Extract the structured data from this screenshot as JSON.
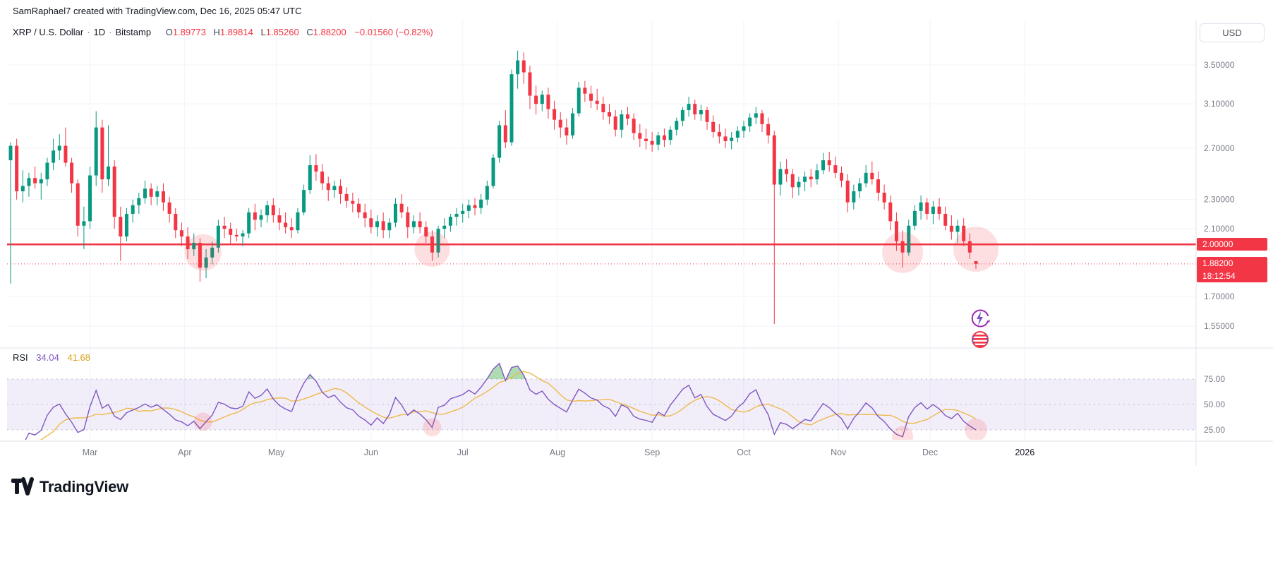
{
  "header": {
    "attribution": "SamRaphael7 created with TradingView.com, Dec 16, 2025 05:47 UTC"
  },
  "legend": {
    "symbol": "XRP / U.S. Dollar",
    "separator": "·",
    "interval": "1D",
    "exchange": "Bitstamp",
    "ohlc": {
      "open_label": "O",
      "open": "1.89773",
      "high_label": "H",
      "high": "1.89814",
      "low_label": "L",
      "low": "1.85260",
      "close_label": "C",
      "close": "1.88200",
      "change": "−0.01560 (−0.82%)"
    }
  },
  "toolbar": {
    "currency": "USD"
  },
  "price_axis": {
    "labels": [
      {
        "text": "3.50000",
        "value": 3.5
      },
      {
        "text": "3.10000",
        "value": 3.1
      },
      {
        "text": "2.70000",
        "value": 2.7
      },
      {
        "text": "2.30000",
        "value": 2.3
      },
      {
        "text": "2.10000",
        "value": 2.1
      },
      {
        "text": "1.70000",
        "value": 1.7
      },
      {
        "text": "1.55000",
        "value": 1.55
      }
    ],
    "line_badge": {
      "text": "2.00000",
      "value": 2.0
    },
    "last_price_badge": {
      "text": "1.88200",
      "value": 1.882,
      "countdown": "18:12:54"
    }
  },
  "time_axis": {
    "labels": [
      {
        "text": "Mar",
        "day": 26
      },
      {
        "text": "Apr",
        "day": 57
      },
      {
        "text": "May",
        "day": 87
      },
      {
        "text": "Jun",
        "day": 118
      },
      {
        "text": "Jul",
        "day": 148
      },
      {
        "text": "Aug",
        "day": 179
      },
      {
        "text": "Sep",
        "day": 210
      },
      {
        "text": "Oct",
        "day": 240
      },
      {
        "text": "Nov",
        "day": 271
      },
      {
        "text": "Dec",
        "day": 301
      },
      {
        "text": "2026",
        "day": 332,
        "year": true
      }
    ]
  },
  "rsi_panel": {
    "label": "RSI",
    "value": "34.04",
    "ma_value": "41.68",
    "axis_labels": [
      {
        "text": "75.00",
        "value": 75
      },
      {
        "text": "50.00",
        "value": 50
      },
      {
        "text": "25.00",
        "value": 25
      }
    ],
    "band": {
      "upper": 75,
      "middle": 50,
      "lower": 25
    }
  },
  "branding": {
    "logo_text": "TradingView"
  },
  "colors": {
    "up": "#089981",
    "down": "#f23645",
    "accent_red": "#f23645",
    "rsi_line": "#7e57c2",
    "rsi_ma_line": "#edb94d",
    "band_fill": "rgba(126,87,194,0.10)",
    "band_dash": "#b7b9c4",
    "overbought_fill": "rgba(76,175,80,0.45)",
    "highlight": "rgba(242,54,69,0.16)",
    "axis_text": "#787b86",
    "text": "#131722",
    "grid": "#f0f3fa",
    "separator": "#e0e3eb"
  },
  "chart_data": {
    "type": "candlestick+rsi",
    "symbol": "XRP/USD",
    "exchange": "Bitstamp",
    "timeframe_display": "1D",
    "price_scale": "log",
    "ylim": [
      1.5,
      3.8
    ],
    "start_date": "2025-02-03",
    "end_date": "2025-12-16",
    "days_per_candle": 2,
    "horizontal_line_price": 2.0,
    "last_price": 1.882,
    "candles_ohlc": [
      [
        2.6,
        2.75,
        1.77,
        2.72
      ],
      [
        2.72,
        2.78,
        2.3,
        2.36
      ],
      [
        2.36,
        2.52,
        2.28,
        2.4
      ],
      [
        2.4,
        2.5,
        2.32,
        2.46
      ],
      [
        2.46,
        2.55,
        2.38,
        2.42
      ],
      [
        2.42,
        2.5,
        2.3,
        2.45
      ],
      [
        2.45,
        2.62,
        2.4,
        2.58
      ],
      [
        2.58,
        2.78,
        2.52,
        2.68
      ],
      [
        2.68,
        2.82,
        2.6,
        2.72
      ],
      [
        2.72,
        2.88,
        2.55,
        2.58
      ],
      [
        2.58,
        2.62,
        2.35,
        2.42
      ],
      [
        2.42,
        2.45,
        2.05,
        2.12
      ],
      [
        2.12,
        2.25,
        1.97,
        2.15
      ],
      [
        2.15,
        2.55,
        2.1,
        2.48
      ],
      [
        2.48,
        3.03,
        2.4,
        2.88
      ],
      [
        2.88,
        2.95,
        2.35,
        2.45
      ],
      [
        2.45,
        2.9,
        2.4,
        2.55
      ],
      [
        2.55,
        2.6,
        2.1,
        2.18
      ],
      [
        2.18,
        2.25,
        1.9,
        2.05
      ],
      [
        2.05,
        2.24,
        2.02,
        2.2
      ],
      [
        2.2,
        2.3,
        2.14,
        2.26
      ],
      [
        2.26,
        2.35,
        2.2,
        2.31
      ],
      [
        2.31,
        2.44,
        2.27,
        2.38
      ],
      [
        2.38,
        2.42,
        2.26,
        2.32
      ],
      [
        2.32,
        2.4,
        2.26,
        2.36
      ],
      [
        2.36,
        2.42,
        2.22,
        2.28
      ],
      [
        2.28,
        2.32,
        2.14,
        2.2
      ],
      [
        2.2,
        2.24,
        2.04,
        2.09
      ],
      [
        2.09,
        2.14,
        1.99,
        2.05
      ],
      [
        2.05,
        2.11,
        1.91,
        1.97
      ],
      [
        1.97,
        2.07,
        1.93,
        2.01
      ],
      [
        2.01,
        2.04,
        1.78,
        1.86
      ],
      [
        1.86,
        1.97,
        1.8,
        1.92
      ],
      [
        1.92,
        2.02,
        1.88,
        1.98
      ],
      [
        1.98,
        2.16,
        1.95,
        2.12
      ],
      [
        2.12,
        2.18,
        2.04,
        2.1
      ],
      [
        2.1,
        2.14,
        2.0,
        2.06
      ],
      [
        2.06,
        2.1,
        2.02,
        2.05
      ],
      [
        2.05,
        2.09,
        1.99,
        2.07
      ],
      [
        2.07,
        2.24,
        2.04,
        2.21
      ],
      [
        2.21,
        2.27,
        2.09,
        2.16
      ],
      [
        2.16,
        2.23,
        2.11,
        2.19
      ],
      [
        2.19,
        2.29,
        2.14,
        2.26
      ],
      [
        2.26,
        2.31,
        2.14,
        2.19
      ],
      [
        2.19,
        2.24,
        2.09,
        2.14
      ],
      [
        2.14,
        2.21,
        2.07,
        2.11
      ],
      [
        2.11,
        2.17,
        2.04,
        2.09
      ],
      [
        2.09,
        2.24,
        2.07,
        2.21
      ],
      [
        2.21,
        2.41,
        2.19,
        2.37
      ],
      [
        2.37,
        2.64,
        2.34,
        2.56
      ],
      [
        2.56,
        2.65,
        2.44,
        2.51
      ],
      [
        2.51,
        2.57,
        2.37,
        2.42
      ],
      [
        2.42,
        2.47,
        2.29,
        2.37
      ],
      [
        2.37,
        2.44,
        2.31,
        2.4
      ],
      [
        2.4,
        2.45,
        2.27,
        2.34
      ],
      [
        2.34,
        2.39,
        2.24,
        2.29
      ],
      [
        2.29,
        2.35,
        2.21,
        2.27
      ],
      [
        2.27,
        2.31,
        2.17,
        2.21
      ],
      [
        2.21,
        2.27,
        2.11,
        2.17
      ],
      [
        2.17,
        2.23,
        2.07,
        2.11
      ],
      [
        2.11,
        2.19,
        2.05,
        2.15
      ],
      [
        2.15,
        2.21,
        2.04,
        2.09
      ],
      [
        2.09,
        2.17,
        2.04,
        2.14
      ],
      [
        2.14,
        2.31,
        2.11,
        2.27
      ],
      [
        2.27,
        2.34,
        2.17,
        2.21
      ],
      [
        2.21,
        2.25,
        2.04,
        2.11
      ],
      [
        2.11,
        2.19,
        2.07,
        2.15
      ],
      [
        2.15,
        2.21,
        2.07,
        2.11
      ],
      [
        2.11,
        2.15,
        2.01,
        2.05
      ],
      [
        2.05,
        2.09,
        1.9,
        1.95
      ],
      [
        1.95,
        2.12,
        1.92,
        2.1
      ],
      [
        2.1,
        2.17,
        2.04,
        2.12
      ],
      [
        2.12,
        2.2,
        2.08,
        2.18
      ],
      [
        2.18,
        2.24,
        2.12,
        2.2
      ],
      [
        2.2,
        2.27,
        2.14,
        2.22
      ],
      [
        2.22,
        2.3,
        2.17,
        2.26
      ],
      [
        2.26,
        2.31,
        2.19,
        2.24
      ],
      [
        2.24,
        2.34,
        2.2,
        2.3
      ],
      [
        2.3,
        2.44,
        2.26,
        2.4
      ],
      [
        2.4,
        2.65,
        2.38,
        2.62
      ],
      [
        2.62,
        2.94,
        2.58,
        2.9
      ],
      [
        2.9,
        3.04,
        2.7,
        2.75
      ],
      [
        2.75,
        3.45,
        2.72,
        3.4
      ],
      [
        3.4,
        3.66,
        3.25,
        3.55
      ],
      [
        3.55,
        3.64,
        3.3,
        3.42
      ],
      [
        3.42,
        3.49,
        3.05,
        3.18
      ],
      [
        3.18,
        3.28,
        3.0,
        3.1
      ],
      [
        3.1,
        3.23,
        3.03,
        3.19
      ],
      [
        3.19,
        3.26,
        2.96,
        3.05
      ],
      [
        3.05,
        3.13,
        2.86,
        2.95
      ],
      [
        2.95,
        3.02,
        2.79,
        2.88
      ],
      [
        2.88,
        2.96,
        2.73,
        2.81
      ],
      [
        2.81,
        3.06,
        2.78,
        3.01
      ],
      [
        3.01,
        3.32,
        2.98,
        3.26
      ],
      [
        3.26,
        3.33,
        3.12,
        3.2
      ],
      [
        3.2,
        3.28,
        3.06,
        3.13
      ],
      [
        3.13,
        3.25,
        3.04,
        3.1
      ],
      [
        3.1,
        3.17,
        2.95,
        3.02
      ],
      [
        3.02,
        3.1,
        2.91,
        2.98
      ],
      [
        2.98,
        3.04,
        2.8,
        2.86
      ],
      [
        2.86,
        3.04,
        2.79,
        3.0
      ],
      [
        3.0,
        3.07,
        2.9,
        2.96
      ],
      [
        2.96,
        3.01,
        2.77,
        2.83
      ],
      [
        2.83,
        2.91,
        2.71,
        2.78
      ],
      [
        2.78,
        2.87,
        2.69,
        2.76
      ],
      [
        2.76,
        2.84,
        2.67,
        2.73
      ],
      [
        2.73,
        2.84,
        2.68,
        2.81
      ],
      [
        2.81,
        2.87,
        2.71,
        2.77
      ],
      [
        2.77,
        2.89,
        2.73,
        2.86
      ],
      [
        2.86,
        2.97,
        2.81,
        2.94
      ],
      [
        2.94,
        3.07,
        2.89,
        3.04
      ],
      [
        3.04,
        3.17,
        2.98,
        3.1
      ],
      [
        3.1,
        3.14,
        2.95,
        3.0
      ],
      [
        3.0,
        3.09,
        2.94,
        3.04
      ],
      [
        3.04,
        3.07,
        2.86,
        2.93
      ],
      [
        2.93,
        2.99,
        2.79,
        2.84
      ],
      [
        2.84,
        2.91,
        2.74,
        2.8
      ],
      [
        2.8,
        2.87,
        2.7,
        2.76
      ],
      [
        2.76,
        2.84,
        2.69,
        2.79
      ],
      [
        2.79,
        2.89,
        2.75,
        2.85
      ],
      [
        2.85,
        2.94,
        2.79,
        2.89
      ],
      [
        2.89,
        3.01,
        2.84,
        2.97
      ],
      [
        2.97,
        3.07,
        2.91,
        3.01
      ],
      [
        3.01,
        3.04,
        2.84,
        2.91
      ],
      [
        2.91,
        2.97,
        2.74,
        2.81
      ],
      [
        2.81,
        2.85,
        1.56,
        2.41
      ],
      [
        2.41,
        2.59,
        2.33,
        2.53
      ],
      [
        2.53,
        2.61,
        2.43,
        2.49
      ],
      [
        2.49,
        2.53,
        2.31,
        2.39
      ],
      [
        2.39,
        2.47,
        2.33,
        2.43
      ],
      [
        2.43,
        2.51,
        2.36,
        2.47
      ],
      [
        2.47,
        2.53,
        2.39,
        2.45
      ],
      [
        2.45,
        2.57,
        2.41,
        2.52
      ],
      [
        2.52,
        2.66,
        2.49,
        2.6
      ],
      [
        2.6,
        2.67,
        2.51,
        2.56
      ],
      [
        2.56,
        2.63,
        2.46,
        2.5
      ],
      [
        2.5,
        2.55,
        2.39,
        2.44
      ],
      [
        2.44,
        2.49,
        2.21,
        2.28
      ],
      [
        2.28,
        2.41,
        2.23,
        2.36
      ],
      [
        2.36,
        2.46,
        2.31,
        2.42
      ],
      [
        2.42,
        2.56,
        2.39,
        2.5
      ],
      [
        2.5,
        2.59,
        2.41,
        2.45
      ],
      [
        2.45,
        2.51,
        2.29,
        2.35
      ],
      [
        2.35,
        2.41,
        2.23,
        2.28
      ],
      [
        2.28,
        2.33,
        2.09,
        2.15
      ],
      [
        2.15,
        2.21,
        1.96,
        2.02
      ],
      [
        2.02,
        2.09,
        1.86,
        1.95
      ],
      [
        1.95,
        2.16,
        1.93,
        2.12
      ],
      [
        2.12,
        2.26,
        2.09,
        2.22
      ],
      [
        2.22,
        2.33,
        2.16,
        2.28
      ],
      [
        2.28,
        2.31,
        2.16,
        2.2
      ],
      [
        2.2,
        2.29,
        2.13,
        2.25
      ],
      [
        2.25,
        2.31,
        2.16,
        2.2
      ],
      [
        2.2,
        2.25,
        2.09,
        2.12
      ],
      [
        2.12,
        2.19,
        2.03,
        2.08
      ],
      [
        2.08,
        2.16,
        2.01,
        2.12
      ],
      [
        2.12,
        2.17,
        1.99,
        2.02
      ],
      [
        2.02,
        2.07,
        1.91,
        1.95
      ],
      [
        1.898,
        1.898,
        1.853,
        1.882
      ]
    ],
    "rsi": {
      "period": 7,
      "ma_period": 7,
      "current": 34.04,
      "ma_current": 41.68,
      "overbought": 75,
      "oversold": 25
    },
    "highlights": {
      "price": [
        {
          "candle": 31.5,
          "price": 1.95,
          "r": 26
        },
        {
          "candle": 69,
          "price": 1.97,
          "r": 25
        },
        {
          "candle": 146,
          "price": 1.95,
          "r": 29
        },
        {
          "candle": 158,
          "price": 1.97,
          "r": 32
        }
      ],
      "rsi": [
        {
          "candle": 31.5,
          "r": 13
        },
        {
          "candle": 69,
          "r": 13
        },
        {
          "candle": 146,
          "r": 15
        },
        {
          "candle": 158,
          "r": 16
        }
      ]
    }
  },
  "stickers": [
    {
      "name": "lightning-circle"
    },
    {
      "name": "striped-ball"
    }
  ]
}
